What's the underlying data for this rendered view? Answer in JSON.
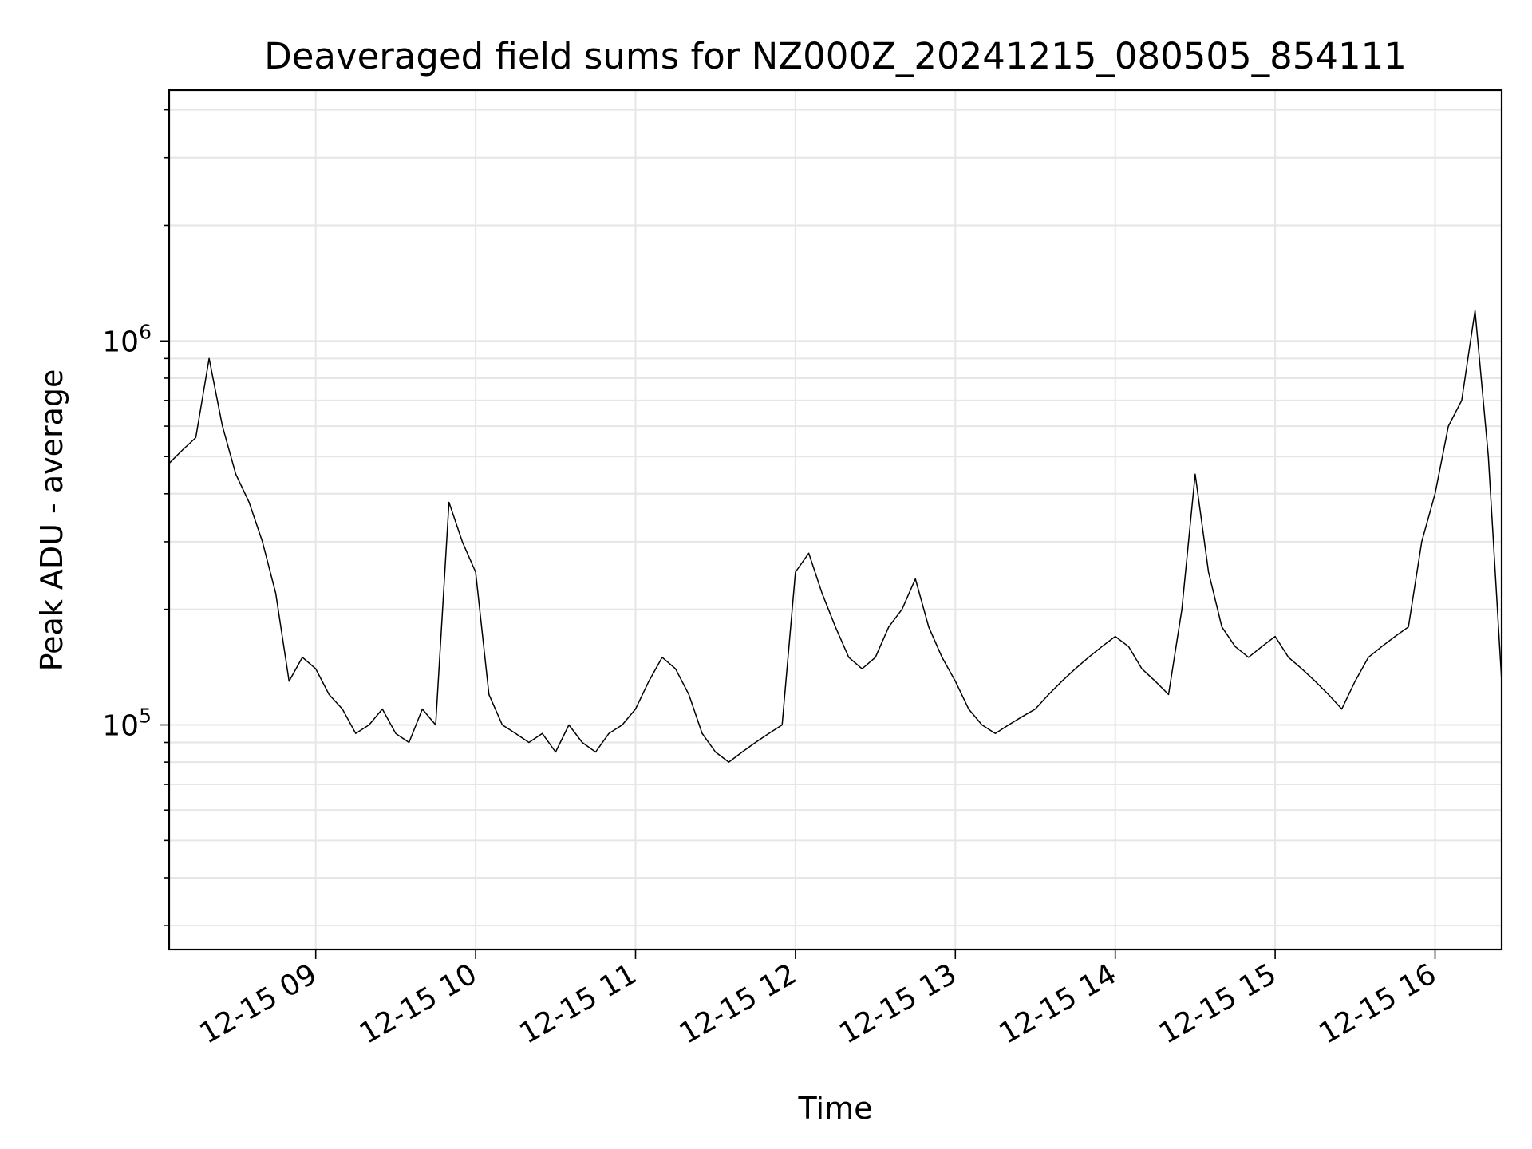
{
  "chart_data": {
    "type": "line",
    "title": "Deaveraged field sums for NZ000Z_20241215_080505_854111",
    "xlabel": "Time",
    "ylabel": "Peak ADU - average",
    "y_scale": "log",
    "ylim": [
      26000,
      4500000
    ],
    "xlim": [
      "2024-12-15 08:05",
      "2024-12-15 16:25"
    ],
    "x_ticks": [
      "12-15 09",
      "12-15 10",
      "12-15 11",
      "12-15 12",
      "12-15 13",
      "12-15 14",
      "12-15 15",
      "12-15 16"
    ],
    "y_ticks": [
      {
        "base": "10",
        "exp": "5",
        "value": 100000
      },
      {
        "base": "10",
        "exp": "6",
        "value": 1000000
      }
    ],
    "grid": true,
    "line_color": "#000000",
    "grid_color": "#e6e6e6",
    "series": [
      {
        "x": [
          "2024-12-15 08:05",
          "2024-12-15 08:10",
          "2024-12-15 08:15",
          "2024-12-15 08:20",
          "2024-12-15 08:25",
          "2024-12-15 08:30",
          "2024-12-15 08:35",
          "2024-12-15 08:40",
          "2024-12-15 08:45",
          "2024-12-15 08:50",
          "2024-12-15 08:55",
          "2024-12-15 09:00",
          "2024-12-15 09:05",
          "2024-12-15 09:10",
          "2024-12-15 09:15",
          "2024-12-15 09:20",
          "2024-12-15 09:25",
          "2024-12-15 09:30",
          "2024-12-15 09:35",
          "2024-12-15 09:40",
          "2024-12-15 09:45",
          "2024-12-15 09:50",
          "2024-12-15 09:55",
          "2024-12-15 10:00",
          "2024-12-15 10:05",
          "2024-12-15 10:10",
          "2024-12-15 10:15",
          "2024-12-15 10:20",
          "2024-12-15 10:25",
          "2024-12-15 10:30",
          "2024-12-15 10:35",
          "2024-12-15 10:40",
          "2024-12-15 10:45",
          "2024-12-15 10:50",
          "2024-12-15 10:55",
          "2024-12-15 11:00",
          "2024-12-15 11:05",
          "2024-12-15 11:10",
          "2024-12-15 11:15",
          "2024-12-15 11:20",
          "2024-12-15 11:25",
          "2024-12-15 11:30",
          "2024-12-15 11:35",
          "2024-12-15 11:40",
          "2024-12-15 11:45",
          "2024-12-15 11:50",
          "2024-12-15 11:55",
          "2024-12-15 12:00",
          "2024-12-15 12:05",
          "2024-12-15 12:10",
          "2024-12-15 12:15",
          "2024-12-15 12:20",
          "2024-12-15 12:25",
          "2024-12-15 12:30",
          "2024-12-15 12:35",
          "2024-12-15 12:40",
          "2024-12-15 12:45",
          "2024-12-15 12:50",
          "2024-12-15 12:55",
          "2024-12-15 13:00",
          "2024-12-15 13:05",
          "2024-12-15 13:10",
          "2024-12-15 13:15",
          "2024-12-15 13:20",
          "2024-12-15 13:25",
          "2024-12-15 13:30",
          "2024-12-15 13:35",
          "2024-12-15 13:40",
          "2024-12-15 13:45",
          "2024-12-15 13:50",
          "2024-12-15 13:55",
          "2024-12-15 14:00",
          "2024-12-15 14:05",
          "2024-12-15 14:10",
          "2024-12-15 14:15",
          "2024-12-15 14:20",
          "2024-12-15 14:25",
          "2024-12-15 14:30",
          "2024-12-15 14:35",
          "2024-12-15 14:40",
          "2024-12-15 14:45",
          "2024-12-15 14:50",
          "2024-12-15 14:55",
          "2024-12-15 15:00",
          "2024-12-15 15:05",
          "2024-12-15 15:10",
          "2024-12-15 15:15",
          "2024-12-15 15:20",
          "2024-12-15 15:25",
          "2024-12-15 15:30",
          "2024-12-15 15:35",
          "2024-12-15 15:40",
          "2024-12-15 15:45",
          "2024-12-15 15:50",
          "2024-12-15 15:55",
          "2024-12-15 16:00",
          "2024-12-15 16:05",
          "2024-12-15 16:10",
          "2024-12-15 16:15",
          "2024-12-15 16:20",
          "2024-12-15 16:25"
        ],
        "values": [
          480000,
          520000,
          560000,
          900000,
          600000,
          450000,
          380000,
          300000,
          220000,
          130000,
          150000,
          140000,
          120000,
          110000,
          95000,
          100000,
          110000,
          95000,
          90000,
          110000,
          100000,
          380000,
          300000,
          250000,
          120000,
          100000,
          95000,
          90000,
          95000,
          85000,
          100000,
          90000,
          85000,
          95000,
          100000,
          110000,
          130000,
          150000,
          140000,
          120000,
          95000,
          85000,
          80000,
          85000,
          90000,
          95000,
          100000,
          250000,
          280000,
          220000,
          180000,
          150000,
          140000,
          150000,
          180000,
          200000,
          240000,
          180000,
          150000,
          130000,
          110000,
          100000,
          95000,
          100000,
          105000,
          110000,
          120000,
          130000,
          140000,
          150000,
          160000,
          170000,
          160000,
          140000,
          130000,
          120000,
          200000,
          450000,
          250000,
          180000,
          160000,
          150000,
          160000,
          170000,
          150000,
          140000,
          130000,
          120000,
          110000,
          130000,
          150000,
          160000,
          170000,
          180000,
          300000,
          400000,
          600000,
          700000,
          1200000,
          500000,
          130000
        ]
      }
    ]
  }
}
